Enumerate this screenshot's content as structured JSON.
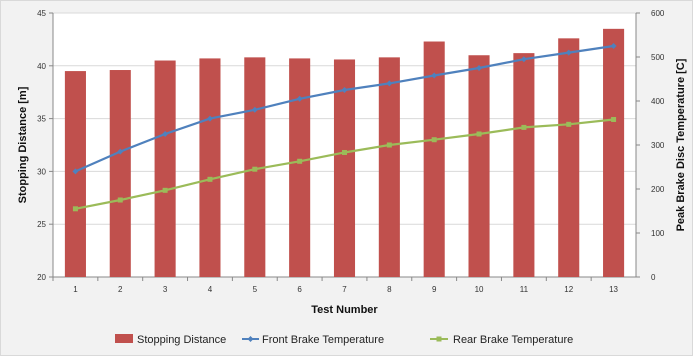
{
  "chart_data": {
    "type": "bar",
    "categories": [
      "1",
      "2",
      "3",
      "4",
      "5",
      "6",
      "7",
      "8",
      "9",
      "10",
      "11",
      "12",
      "13"
    ],
    "xlabel": "Test Number",
    "ylabel": "Stopping Distance [m]",
    "y2label": "Peak Brake Disc Temperature [C]",
    "ylim": [
      20,
      45
    ],
    "yticks": [
      20,
      25,
      30,
      35,
      40,
      45
    ],
    "y2lim": [
      0,
      600
    ],
    "y2ticks": [
      0,
      100,
      200,
      300,
      400,
      500,
      600
    ],
    "grid": true,
    "legend_position": "bottom",
    "series": [
      {
        "name": "Stopping Distance",
        "kind": "bar",
        "axis": "left",
        "color": "#c0504d",
        "values": [
          39.5,
          39.6,
          40.5,
          40.7,
          40.8,
          40.7,
          40.6,
          40.8,
          42.3,
          41.0,
          41.2,
          42.6,
          43.5
        ]
      },
      {
        "name": "Front Brake Temperature",
        "kind": "line",
        "axis": "right",
        "color": "#4f81bd",
        "values": [
          240,
          285,
          325,
          360,
          380,
          405,
          425,
          440,
          458,
          475,
          495,
          510,
          525
        ]
      },
      {
        "name": "Rear Brake Temperature",
        "kind": "line",
        "axis": "right",
        "color": "#9bbb59",
        "values": [
          155,
          175,
          197,
          222,
          245,
          263,
          283,
          300,
          312,
          325,
          340,
          347,
          358
        ]
      }
    ]
  }
}
